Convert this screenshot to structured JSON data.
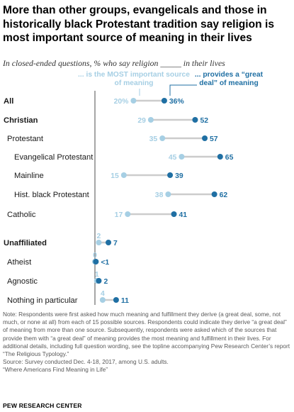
{
  "title": "More than other groups, evangelicals and those in historically black Protestant tradition say religion is most important source of meaning in their lives",
  "subtitle": "In closed-ended questions, % who say religion _____ in their lives",
  "legend": {
    "most_important": "... is the MOST important source of meaning",
    "great_deal": "... provides a “great deal” of meaning"
  },
  "colors": {
    "most_important": "#a6cfe4",
    "great_deal": "#1f6fa3",
    "connector": "#cccccc",
    "axis": "#4d4d4d"
  },
  "chart_data": {
    "type": "dot_plot",
    "series": [
      {
        "name": "... is the MOST important source of meaning",
        "key": "most"
      },
      {
        "name": "... provides a “great deal” of meaning",
        "key": "great"
      }
    ],
    "rows": [
      {
        "label": "All",
        "most": 20,
        "great": 36,
        "most_label": "20%",
        "great_label": "36%",
        "bold": true,
        "indent": 0
      },
      {
        "label": "Christian",
        "most": 29,
        "great": 52,
        "most_label": "29",
        "great_label": "52",
        "bold": true,
        "indent": 0
      },
      {
        "label": "Protestant",
        "most": 35,
        "great": 57,
        "most_label": "35",
        "great_label": "57",
        "bold": false,
        "indent": 1
      },
      {
        "label": "Evangelical Protestant",
        "most": 45,
        "great": 65,
        "most_label": "45",
        "great_label": "65",
        "bold": false,
        "indent": 2
      },
      {
        "label": "Mainline",
        "most": 15,
        "great": 39,
        "most_label": "15",
        "great_label": "39",
        "bold": false,
        "indent": 2
      },
      {
        "label": "Hist. black Protestant",
        "most": 38,
        "great": 62,
        "most_label": "38",
        "great_label": "62",
        "bold": false,
        "indent": 2
      },
      {
        "label": "Catholic",
        "most": 17,
        "great": 41,
        "most_label": "17",
        "great_label": "41",
        "bold": false,
        "indent": 1
      },
      {
        "label": "Unaffiliated",
        "most": 2,
        "great": 7,
        "most_label": "2",
        "great_label": "7",
        "bold": true,
        "indent": 0
      },
      {
        "label": "Atheist",
        "most": 0,
        "great": 0.5,
        "most_label": "0",
        "great_label": "<1",
        "bold": false,
        "indent": 1
      },
      {
        "label": "Agnostic",
        "most": 1,
        "great": 2,
        "most_label": "1",
        "great_label": "2",
        "bold": false,
        "indent": 1
      },
      {
        "label": "Nothing in particular",
        "most": 4,
        "great": 11,
        "most_label": "4",
        "great_label": "11",
        "bold": false,
        "indent": 1
      }
    ],
    "xlim": [
      0,
      100
    ]
  },
  "note": "Note: Respondents were first asked how much meaning and fulfillment they derive (a great deal, some, not much, or none at all) from each of 15 possible sources. Respondents could indicate they derive “a great deal” of meaning from more than one source. Subsequently, respondents were asked which of the sources that provide them with “a great deal” of meaning provides the most meaning and fulfillment in their lives. For additional details, including full question wording, see the topline accompanying Pew Research Center’s report “The Religious Typology.”",
  "source": "Source: Survey conducted Dec. 4-18, 2017, among U.S. adults.",
  "report": "“Where Americans Find Meaning in Life”",
  "brand": "PEW RESEARCH CENTER"
}
